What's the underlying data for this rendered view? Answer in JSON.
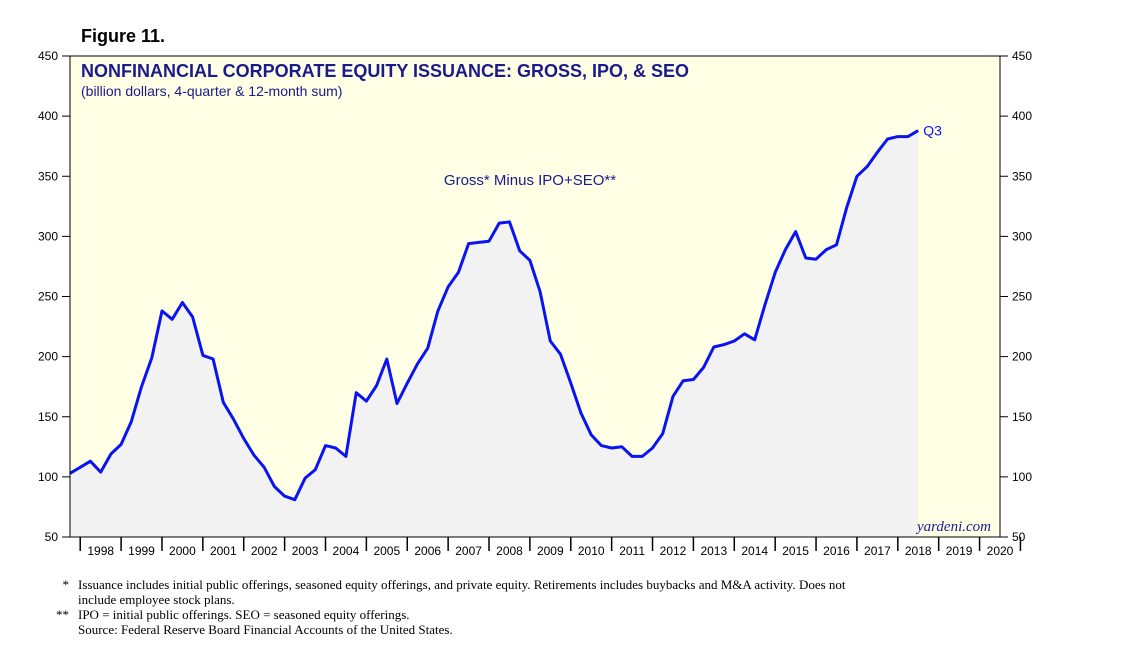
{
  "figure_label": "Figure 11.",
  "chart_data": {
    "type": "area",
    "title": "NONFINANCIAL CORPORATE EQUITY ISSUANCE: GROSS, IPO, & SEO",
    "subtitle": "(billion dollars, 4-quarter & 12-month sum)",
    "series": [
      {
        "name": "Gross* Minus IPO+SEO**",
        "end_label": "Q3",
        "color": "#0a14f0",
        "x": [
          1997.75,
          1998.0,
          1998.25,
          1998.5,
          1998.75,
          1999.0,
          1999.25,
          1999.5,
          1999.75,
          2000.0,
          2000.25,
          2000.5,
          2000.75,
          2001.0,
          2001.25,
          2001.5,
          2001.75,
          2002.0,
          2002.25,
          2002.5,
          2002.75,
          2003.0,
          2003.25,
          2003.5,
          2003.75,
          2004.0,
          2004.25,
          2004.5,
          2004.75,
          2005.0,
          2005.25,
          2005.5,
          2005.75,
          2006.0,
          2006.25,
          2006.5,
          2006.75,
          2007.0,
          2007.25,
          2007.5,
          2007.75,
          2008.0,
          2008.25,
          2008.5,
          2008.75,
          2009.0,
          2009.25,
          2009.5,
          2009.75,
          2010.0,
          2010.25,
          2010.5,
          2010.75,
          2011.0,
          2011.25,
          2011.5,
          2011.75,
          2012.0,
          2012.25,
          2012.5,
          2012.75,
          2013.0,
          2013.25,
          2013.5,
          2013.75,
          2014.0,
          2014.25,
          2014.5,
          2014.75,
          2015.0,
          2015.25,
          2015.5,
          2015.75,
          2016.0,
          2016.25,
          2016.5,
          2016.75,
          2017.0,
          2017.25,
          2017.5,
          2017.75,
          2018.0,
          2018.25,
          2018.5
        ],
        "values": [
          103,
          108,
          113,
          104,
          119,
          127,
          146,
          175,
          199,
          238,
          231,
          245,
          233,
          201,
          198,
          162,
          148,
          132,
          118,
          108,
          92,
          84,
          81,
          99,
          106,
          126,
          124,
          117,
          170,
          163,
          176,
          198,
          161,
          178,
          194,
          207,
          238,
          258,
          270,
          294,
          295,
          296,
          311,
          312,
          288,
          280,
          254,
          213,
          202,
          178,
          153,
          135,
          126,
          124,
          125,
          117,
          117,
          124,
          136,
          167,
          180,
          181,
          191,
          208,
          210,
          213,
          219,
          214,
          243,
          270,
          289,
          304,
          282,
          281,
          289,
          293,
          324,
          350,
          358,
          370,
          381,
          383,
          383,
          388
        ]
      }
    ],
    "x_categories": [
      "1998",
      "1999",
      "2000",
      "2001",
      "2002",
      "2003",
      "2004",
      "2005",
      "2006",
      "2007",
      "2008",
      "2009",
      "2010",
      "2011",
      "2012",
      "2013",
      "2014",
      "2015",
      "2016",
      "2017",
      "2018",
      "2019",
      "2020"
    ],
    "xlim": [
      1997.75,
      2020.5
    ],
    "ylim": [
      50,
      450
    ],
    "yticks": [
      50,
      100,
      150,
      200,
      250,
      300,
      350,
      400,
      450
    ],
    "grid": false,
    "watermark": "yardeni.com"
  },
  "footnotes": [
    {
      "mark": "*",
      "text": "Issuance includes initial public offerings, seasoned equity offerings, and private equity. Retirements includes buybacks and M&A activity. Does not"
    },
    {
      "mark": "",
      "text": "include employee stock plans."
    },
    {
      "mark": "**",
      "text": "IPO = initial public offerings. SEO = seasoned equity offerings."
    },
    {
      "mark": "",
      "text": "Source: Federal Reserve Board Financial Accounts of the United States."
    }
  ],
  "colors": {
    "plot_background": "#ffffe6",
    "area_fill": "#f2f2f2",
    "line": "#0a14f0"
  }
}
